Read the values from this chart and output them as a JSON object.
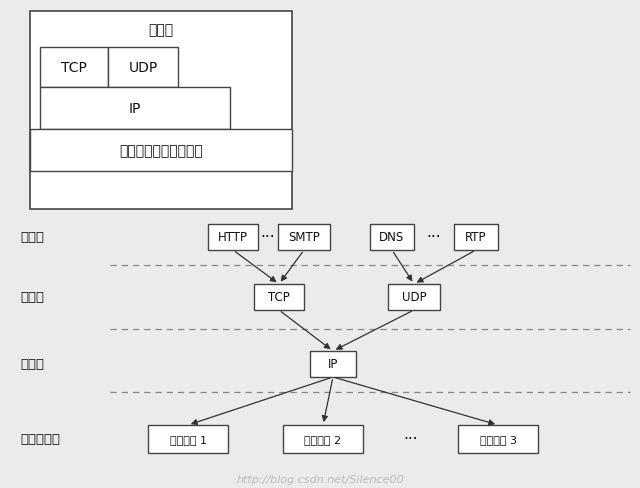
{
  "bg_color": "#ebebeb",
  "box_color": "#ffffff",
  "box_edge": "#444444",
  "text_color": "#111111",
  "arrow_color": "#333333",
  "dashed_color": "#888888",
  "top": {
    "app_label": "应用层",
    "tcp_label": "TCP",
    "udp_label": "UDP",
    "ip_label": "IP",
    "net_label": "网络接口层（子网层）"
  },
  "bottom": {
    "app_label": "应用层",
    "transport_label": "运输层",
    "network_label": "网际层",
    "netif_label": "网络接口层",
    "http_label": "HTTP",
    "smtp_label": "SMTP",
    "dns_label": "DNS",
    "rtp_label": "RTP",
    "tcp2_label": "TCP",
    "udp2_label": "UDP",
    "ip2_label": "IP",
    "ni1_label": "网络接口 1",
    "ni2_label": "网络接口 2",
    "ni3_label": "网络接口 3",
    "dots": "···",
    "watermark": "http://blog.csdn.net/Silence00"
  }
}
